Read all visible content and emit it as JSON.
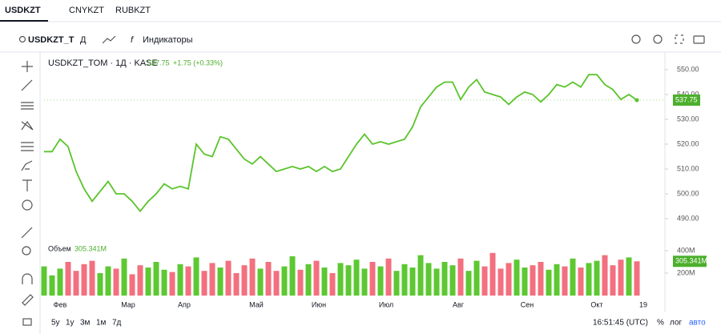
{
  "tabs": [
    "USDKZT",
    "CNYKZT",
    "RUBKZT"
  ],
  "toolbar": {
    "symbol": "USDKZT_T",
    "interval": "Д",
    "indicators": "Индикаторы"
  },
  "chart_data": {
    "type": "line",
    "title": "USDKZT_TOM · 1Д · KASE",
    "change": "+1.75 (+0.33%)",
    "last_price": 537.75,
    "series": [
      {
        "color": "#5ac42b",
        "values": [
          517,
          517,
          522,
          519,
          509,
          502,
          497,
          501,
          505,
          500,
          500,
          497,
          493,
          497,
          500,
          504,
          502,
          503,
          502,
          520,
          516,
          515,
          523,
          522,
          518,
          514,
          512,
          515,
          512,
          509,
          510,
          511,
          510,
          511,
          509,
          511,
          509,
          510,
          515,
          520,
          524,
          520,
          521,
          520,
          521,
          522,
          527,
          535,
          539,
          543,
          545,
          545,
          538,
          543,
          546,
          541,
          540,
          539,
          536,
          539,
          541,
          540,
          537,
          540,
          544,
          543,
          545,
          543,
          548,
          548,
          544,
          542,
          538,
          540,
          537.75
        ]
      }
    ],
    "xlim": [
      0,
      75
    ],
    "xticks": [
      {
        "value": 2,
        "label": "Фев"
      },
      {
        "value": 10.5,
        "label": "Мар"
      },
      {
        "value": 17.5,
        "label": "Апр"
      },
      {
        "value": 26.5,
        "label": "Май"
      },
      {
        "value": 34.3,
        "label": "Июн"
      },
      {
        "value": 42.7,
        "label": "Июл"
      },
      {
        "value": 51.7,
        "label": "Авг"
      },
      {
        "value": 60.3,
        "label": "Сен"
      },
      {
        "value": 69,
        "label": "Окт"
      },
      {
        "value": 74.8,
        "label": "19"
      }
    ],
    "ylim": [
      486,
      554
    ],
    "yticks": [
      {
        "value": 490,
        "label": "490.00"
      },
      {
        "value": 500,
        "label": "500.00"
      },
      {
        "value": 510,
        "label": "510.00"
      },
      {
        "value": 520,
        "label": "520.00"
      },
      {
        "value": 530,
        "label": "530.00"
      },
      {
        "value": 540,
        "label": "540.00"
      },
      {
        "value": 550,
        "label": "550.00"
      }
    ],
    "volume": {
      "title": "Объем",
      "last": {
        "value": 305.341,
        "label": "305.341M"
      },
      "up_color": "#5cc832",
      "down_color": "#f2707f",
      "values": [
        260,
        180,
        240,
        300,
        220,
        280,
        310,
        200,
        260,
        240,
        330,
        190,
        270,
        250,
        300,
        230,
        210,
        280,
        260,
        340,
        220,
        290,
        250,
        310,
        200,
        270,
        330,
        240,
        300,
        220,
        260,
        350,
        230,
        280,
        310,
        250,
        200,
        290,
        270,
        320,
        240,
        300,
        260,
        330,
        220,
        280,
        250,
        360,
        290,
        240,
        300,
        270,
        330,
        220,
        310,
        260,
        380,
        240,
        290,
        320,
        250,
        270,
        300,
        230,
        280,
        260,
        330,
        250,
        290,
        310,
        360,
        270,
        320,
        340,
        305.341
      ],
      "ylim": [
        0,
        500
      ],
      "yticks": [
        {
          "value": 200,
          "label": "200M"
        },
        {
          "value": 400,
          "label": "400M"
        }
      ]
    }
  },
  "footer": {
    "ranges": [
      "5у",
      "1у",
      "3м",
      "1м",
      "7д"
    ],
    "time": "16:51:45 (UTC)",
    "percent": "%",
    "log": "лог",
    "auto": "авто"
  }
}
